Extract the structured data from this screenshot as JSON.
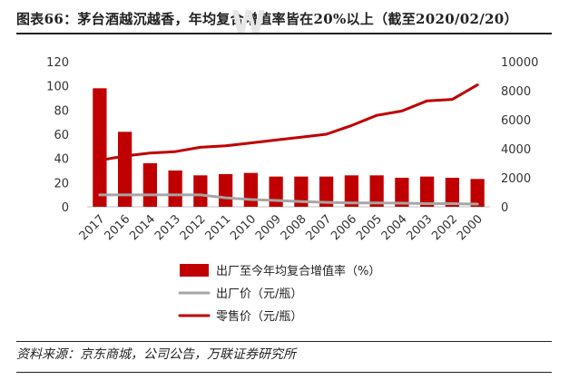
{
  "title": "图表66：茅台酒越沉越香，年均复合增值率皆在20%以上（截至2020/02/20）",
  "source": "资料来源：京东商城，公司公告，万联证券研究所",
  "watermark": "W",
  "chart_data": {
    "type": "bar",
    "categories": [
      "2017",
      "2016",
      "2014",
      "2013",
      "2012",
      "2011",
      "2010",
      "2009",
      "2008",
      "2007",
      "2006",
      "2005",
      "2004",
      "2003",
      "2002",
      "2000"
    ],
    "series": [
      {
        "name": "出厂至今年均复合增值率（%）",
        "type": "bar",
        "axis": "left",
        "color": "#c00000",
        "values": [
          98,
          62,
          36,
          30,
          26,
          27,
          28,
          25,
          25,
          25,
          26,
          26,
          24,
          25,
          24,
          23
        ]
      },
      {
        "name": "出厂价（元/瓶）",
        "type": "line",
        "axis": "right",
        "color": "#a6a6a6",
        "values": [
          819,
          819,
          819,
          819,
          819,
          619,
          499,
          439,
          358,
          308,
          268,
          268,
          250,
          218,
          218,
          185
        ]
      },
      {
        "name": "零售价（元/瓶）",
        "type": "line",
        "axis": "right",
        "color": "#c00000",
        "values": [
          3200,
          3500,
          3700,
          3800,
          4100,
          4200,
          4400,
          4600,
          4800,
          5000,
          5600,
          6300,
          6600,
          7300,
          7400,
          8400
        ]
      }
    ],
    "left_axis": {
      "min": 0,
      "max": 120,
      "step": 20,
      "ticks": [
        "0",
        "20",
        "40",
        "60",
        "80",
        "100",
        "120"
      ]
    },
    "right_axis": {
      "min": 0,
      "max": 10000,
      "step": 2000,
      "ticks": [
        "0",
        "2000",
        "4000",
        "6000",
        "8000",
        "10000"
      ]
    },
    "grid": false,
    "legend_position": "bottom"
  }
}
